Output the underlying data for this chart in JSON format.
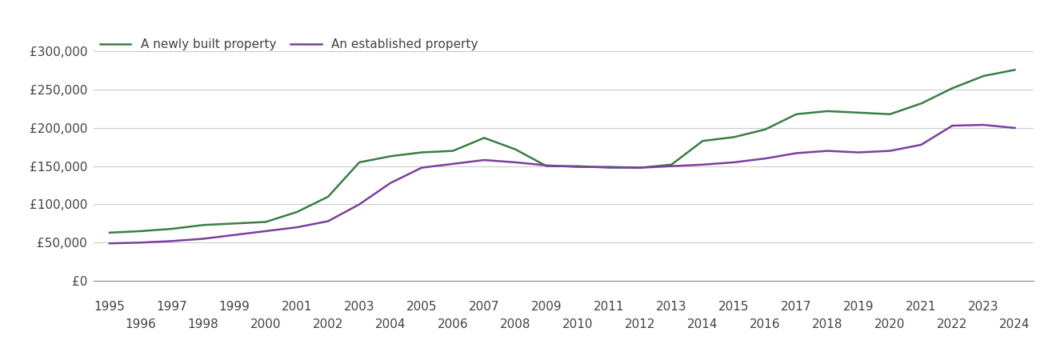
{
  "newly_built": {
    "years": [
      1995,
      1996,
      1997,
      1998,
      1999,
      2000,
      2001,
      2002,
      2003,
      2004,
      2005,
      2006,
      2007,
      2008,
      2009,
      2010,
      2011,
      2012,
      2013,
      2014,
      2015,
      2016,
      2017,
      2018,
      2019,
      2020,
      2021,
      2022,
      2023,
      2024
    ],
    "values": [
      63000,
      65000,
      68000,
      73000,
      75000,
      77000,
      90000,
      110000,
      155000,
      163000,
      168000,
      170000,
      187000,
      172000,
      150000,
      150000,
      148000,
      148000,
      152000,
      183000,
      188000,
      198000,
      218000,
      222000,
      220000,
      218000,
      232000,
      252000,
      268000,
      276000
    ]
  },
  "established": {
    "years": [
      1995,
      1996,
      1997,
      1998,
      1999,
      2000,
      2001,
      2002,
      2003,
      2004,
      2005,
      2006,
      2007,
      2008,
      2009,
      2010,
      2011,
      2012,
      2013,
      2014,
      2015,
      2016,
      2017,
      2018,
      2019,
      2020,
      2021,
      2022,
      2023,
      2024
    ],
    "values": [
      49000,
      50000,
      52000,
      55000,
      60000,
      65000,
      70000,
      78000,
      100000,
      128000,
      148000,
      153000,
      158000,
      155000,
      151000,
      149000,
      149000,
      148000,
      150000,
      152000,
      155000,
      160000,
      167000,
      170000,
      168000,
      170000,
      178000,
      203000,
      204000,
      200000
    ]
  },
  "newly_built_color": "#3a7d44",
  "established_color": "#7b3fa0",
  "newly_built_label": "A newly built property",
  "established_label": "An established property",
  "ylim": [
    0,
    325000
  ],
  "yticks": [
    0,
    50000,
    100000,
    150000,
    200000,
    250000,
    300000
  ],
  "ytick_labels": [
    "£0",
    "£50,000",
    "£100,000",
    "£150,000",
    "£200,000",
    "£250,000",
    "£300,000"
  ],
  "xtick_years_top": [
    1995,
    1997,
    1999,
    2001,
    2003,
    2005,
    2007,
    2009,
    2011,
    2013,
    2015,
    2017,
    2019,
    2021,
    2023
  ],
  "xtick_years_bottom": [
    1996,
    1998,
    2000,
    2002,
    2004,
    2006,
    2008,
    2010,
    2012,
    2014,
    2016,
    2018,
    2020,
    2022,
    2024
  ],
  "background_color": "#ffffff",
  "grid_color": "#cccccc",
  "line_width": 1.8,
  "legend_fontsize": 11,
  "tick_fontsize": 11,
  "xlim_left": 1994.5,
  "xlim_right": 2024.6
}
